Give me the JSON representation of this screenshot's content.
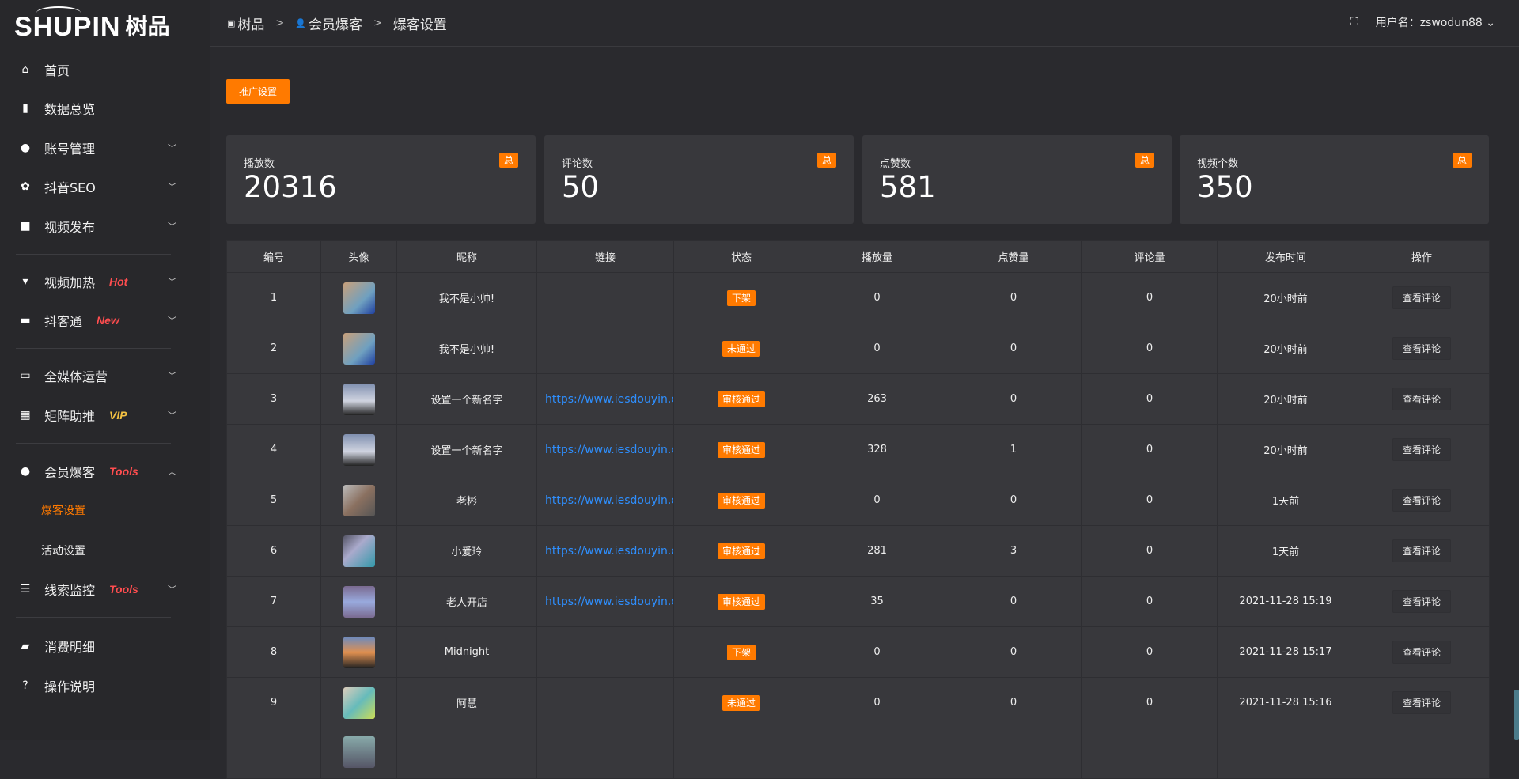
{
  "logo": {
    "en": "SHUPIN",
    "cn": "树品"
  },
  "sidebar": {
    "items": [
      {
        "label": "首页",
        "icon": "home-icon"
      },
      {
        "label": "数据总览",
        "icon": "bar-chart-icon"
      },
      {
        "label": "账号管理",
        "icon": "user-icon"
      },
      {
        "label": "抖音SEO",
        "icon": "gear-icon"
      },
      {
        "label": "视频发布",
        "icon": "camera-icon"
      },
      {
        "label": "视频加热",
        "icon": "sign-icon",
        "tag": "Hot",
        "tag_color": "#ff4d4f"
      },
      {
        "label": "抖客通",
        "icon": "chat-icon",
        "tag": "New",
        "tag_color": "#ff4d4f"
      },
      {
        "label": "全媒体运营",
        "icon": "monitor-icon"
      },
      {
        "label": "矩阵助推",
        "icon": "grid-icon",
        "tag": "VIP",
        "tag_color": "#f5c242"
      },
      {
        "label": "会员爆客",
        "icon": "user-icon",
        "tag": "Tools",
        "tag_color": "#ff4d4f"
      },
      {
        "label": "线索监控",
        "icon": "sliders-icon",
        "tag": "Tools",
        "tag_color": "#ff4d4f"
      },
      {
        "label": "消费明细",
        "icon": "wallet-icon"
      },
      {
        "label": "操作说明",
        "icon": "help-icon"
      }
    ],
    "sub": [
      {
        "label": "爆客设置",
        "active": true
      },
      {
        "label": "活动设置"
      }
    ]
  },
  "header": {
    "breadcrumb": [
      "树品",
      "会员爆客",
      "爆客设置"
    ],
    "user": "用户名：zswodun88"
  },
  "promo_button": "推广设置",
  "stats": [
    {
      "label": "播放数",
      "value": "20316",
      "badge": "总"
    },
    {
      "label": "评论数",
      "value": "50",
      "badge": "总"
    },
    {
      "label": "点赞数",
      "value": "581",
      "badge": "总"
    },
    {
      "label": "视频个数",
      "value": "350",
      "badge": "总"
    }
  ],
  "table": {
    "headers": [
      "编号",
      "头像",
      "昵称",
      "链接",
      "状态",
      "播放量",
      "点赞量",
      "评论量",
      "发布时间",
      "操作"
    ],
    "rows": [
      {
        "id": "1",
        "name": "我不是小帅!",
        "link": "",
        "status": "下架",
        "plays": "0",
        "likes": "0",
        "comments": "0",
        "time": "20小时前",
        "action": "查看评论"
      },
      {
        "id": "2",
        "name": "我不是小帅!",
        "link": "",
        "status": "未通过",
        "plays": "0",
        "likes": "0",
        "comments": "0",
        "time": "20小时前",
        "action": "查看评论"
      },
      {
        "id": "3",
        "name": "设置一个新名字",
        "link": "https://www.iesdouyin.c",
        "status": "审核通过",
        "plays": "263",
        "likes": "0",
        "comments": "0",
        "time": "20小时前",
        "action": "查看评论"
      },
      {
        "id": "4",
        "name": "设置一个新名字",
        "link": "https://www.iesdouyin.c",
        "status": "审核通过",
        "plays": "328",
        "likes": "1",
        "comments": "0",
        "time": "20小时前",
        "action": "查看评论"
      },
      {
        "id": "5",
        "name": "老彬",
        "link": "https://www.iesdouyin.c",
        "status": "审核通过",
        "plays": "0",
        "likes": "0",
        "comments": "0",
        "time": "1天前",
        "action": "查看评论"
      },
      {
        "id": "6",
        "name": "小爱玲",
        "link": "https://www.iesdouyin.c",
        "status": "审核通过",
        "plays": "281",
        "likes": "3",
        "comments": "0",
        "time": "1天前",
        "action": "查看评论"
      },
      {
        "id": "7",
        "name": "老人开店",
        "link": "https://www.iesdouyin.c",
        "status": "审核通过",
        "plays": "35",
        "likes": "0",
        "comments": "0",
        "time": "2021-11-28 15:19",
        "action": "查看评论"
      },
      {
        "id": "8",
        "name": "Midnight",
        "link": "",
        "status": "下架",
        "plays": "0",
        "likes": "0",
        "comments": "0",
        "time": "2021-11-28 15:17",
        "action": "查看评论"
      },
      {
        "id": "9",
        "name": "阿慧",
        "link": "",
        "status": "未通过",
        "plays": "0",
        "likes": "0",
        "comments": "0",
        "time": "2021-11-28 15:16",
        "action": "查看评论"
      }
    ]
  },
  "colors": {
    "accent": "#ff7a00",
    "link": "#2e8fff",
    "background": "#2a2a2e"
  }
}
